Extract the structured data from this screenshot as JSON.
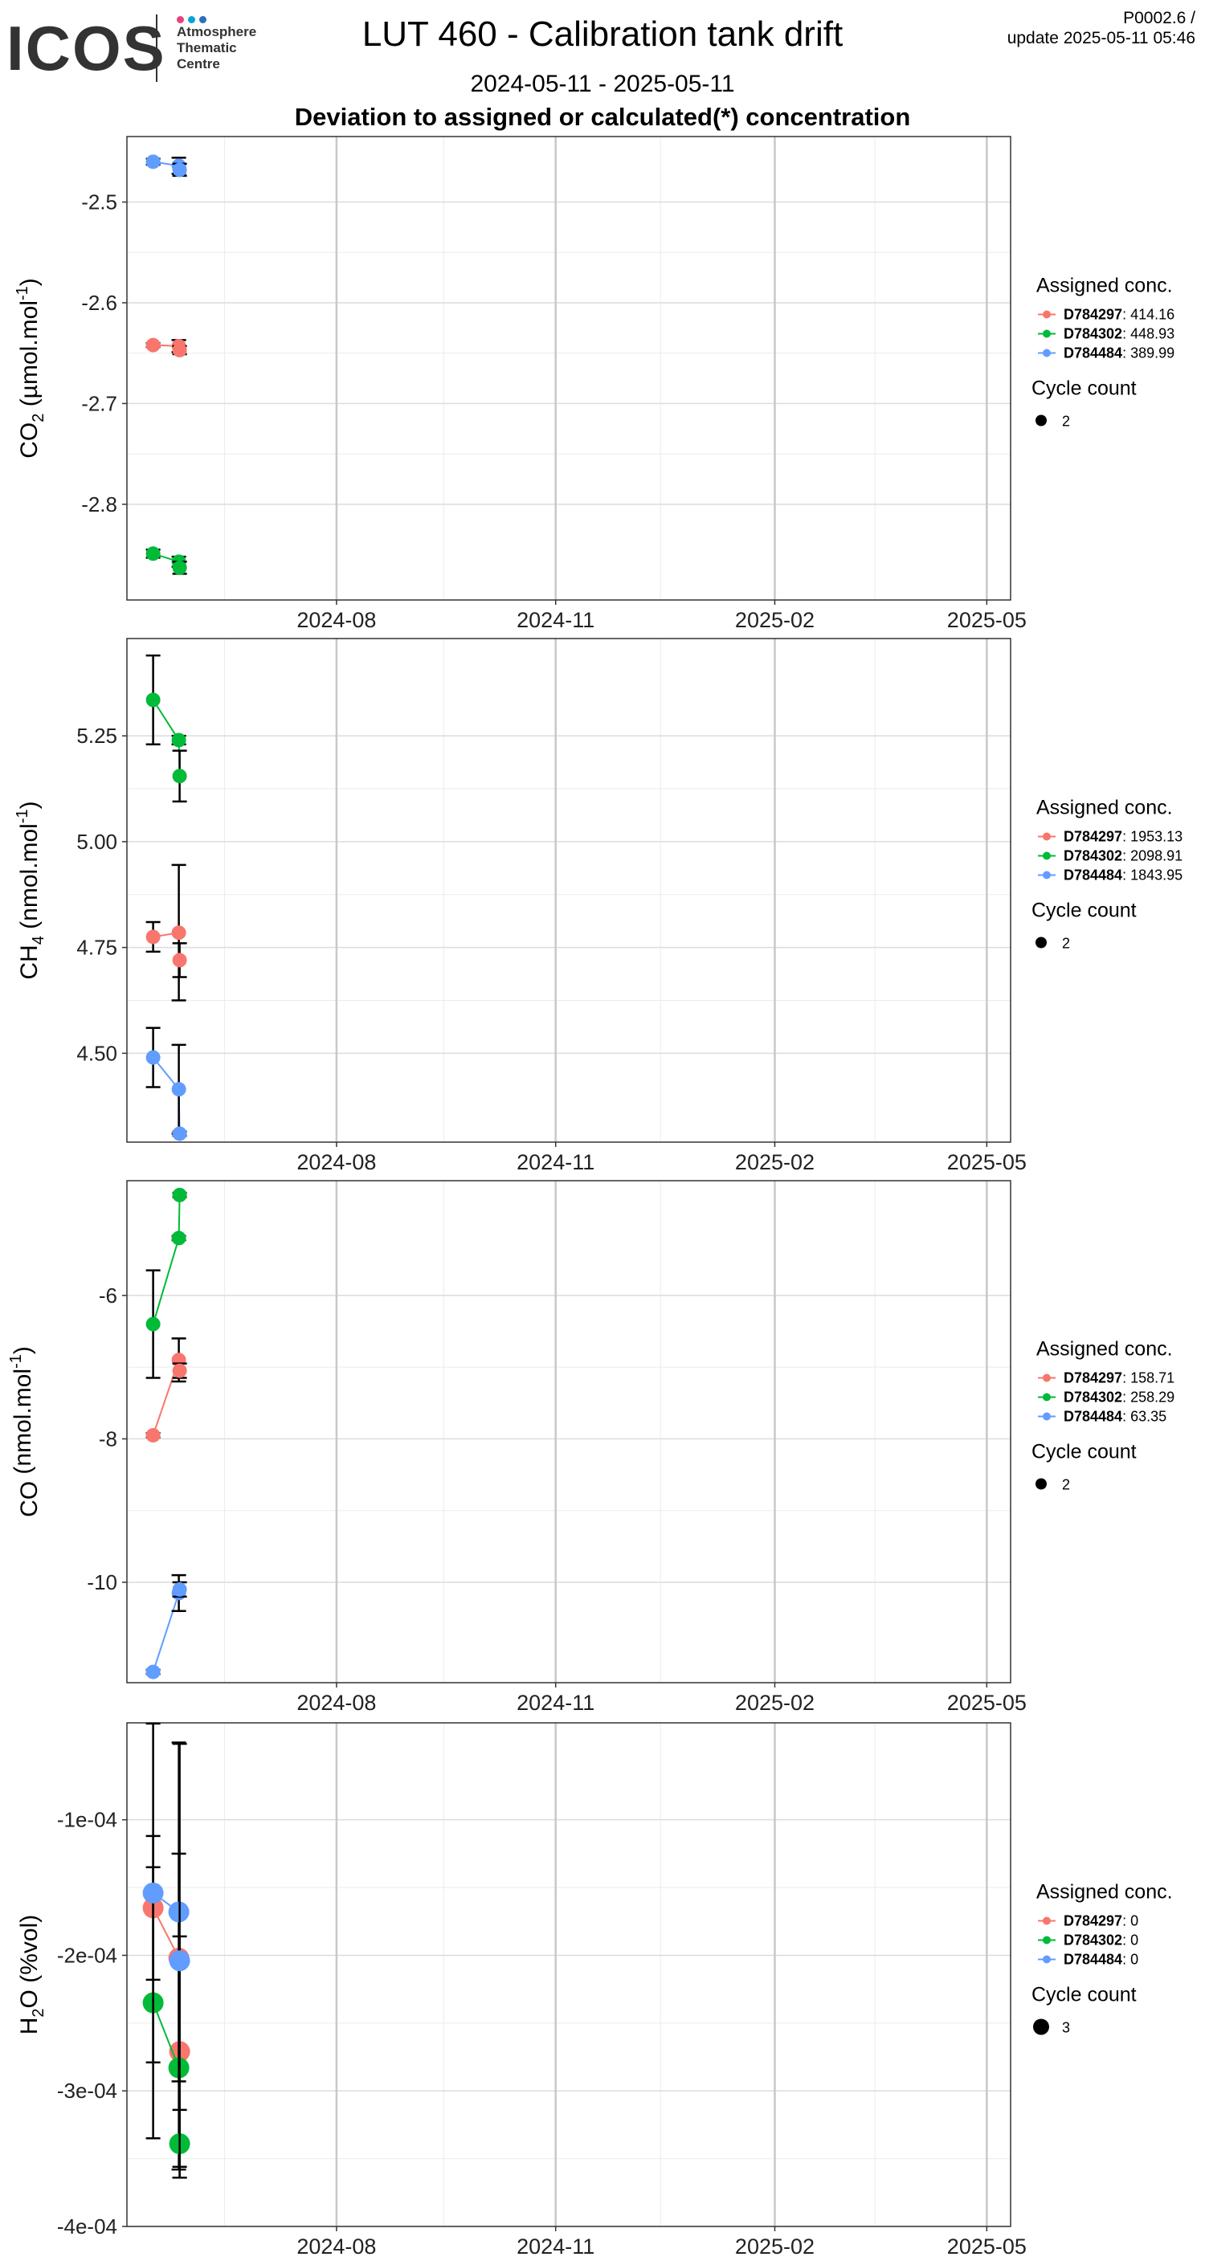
{
  "header": {
    "logo_text": "ICOS",
    "logo_sub": [
      "Atmosphere",
      "Thematic",
      "Centre"
    ],
    "logo_dot_colors": [
      "#e6427a",
      "#00a6d6",
      "#2e6fb8"
    ],
    "title": "LUT 460 - Calibration tank drift",
    "date_range": "2024-05-11 - 2025-05-11",
    "subtitle": "Deviation to assigned or calculated(*) concentration",
    "version_line1": "P0002.6 /",
    "version_line2": "update  2025-05-11 05:46"
  },
  "chart_data": [
    {
      "type": "line",
      "ylabel": "CO2 (µmol.mol-1)",
      "ylabel_main": "CO",
      "ylabel_sub": "2",
      "ylabel_rest": " (µmol.mol",
      "ylabel_sup": "-1",
      "ylabel_end": ")",
      "x_ticks": [
        "2024-08",
        "2024-11",
        "2025-02",
        "2025-05"
      ],
      "x_domain": [
        "2024-05-11",
        "2025-05-11"
      ],
      "ylim": [
        -2.895,
        -2.435
      ],
      "y_ticks": [
        -2.8,
        -2.7,
        -2.6,
        -2.5
      ],
      "y_tick_labels": [
        "-2.8",
        "-2.7",
        "-2.6",
        "-2.5"
      ],
      "legend_title": "Assigned conc.",
      "size_title": "Cycle count",
      "size_label": "2",
      "series": [
        {
          "name": "D784297",
          "value_label": "414.16",
          "color": "#f8766d",
          "points": [
            {
              "x": "2024-05-16",
              "y": -2.642,
              "err": 0.002
            },
            {
              "x": "2024-05-22",
              "y": -2.643,
              "err": 0.006
            },
            {
              "x": "2024-05-22",
              "y": -2.647,
              "err": 0.004
            }
          ]
        },
        {
          "name": "D784302",
          "value_label": "448.93",
          "color": "#00ba38",
          "points": [
            {
              "x": "2024-05-16",
              "y": -2.849,
              "err": 0.004
            },
            {
              "x": "2024-05-22",
              "y": -2.857,
              "err": 0.005
            },
            {
              "x": "2024-05-22",
              "y": -2.863,
              "err": 0.006
            }
          ]
        },
        {
          "name": "D784484",
          "value_label": "389.99",
          "color": "#619cff",
          "points": [
            {
              "x": "2024-05-16",
              "y": -2.46,
              "err": 0.003
            },
            {
              "x": "2024-05-22",
              "y": -2.464,
              "err": 0.008
            },
            {
              "x": "2024-05-22",
              "y": -2.468,
              "err": 0.006
            }
          ]
        }
      ]
    },
    {
      "type": "line",
      "ylabel": "CH4 (nmol.mol-1)",
      "ylabel_main": "CH",
      "ylabel_sub": "4",
      "ylabel_rest": " (nmol.mol",
      "ylabel_sup": "-1",
      "ylabel_end": ")",
      "x_ticks": [
        "2024-08",
        "2024-11",
        "2025-02",
        "2025-05"
      ],
      "x_domain": [
        "2024-05-11",
        "2025-05-11"
      ],
      "ylim": [
        4.29,
        5.48
      ],
      "y_ticks": [
        4.5,
        4.75,
        5.0,
        5.25
      ],
      "y_tick_labels": [
        "4.50",
        "4.75",
        "5.00",
        "5.25"
      ],
      "legend_title": "Assigned conc.",
      "size_title": "Cycle count",
      "size_label": "2",
      "series": [
        {
          "name": "D784297",
          "value_label": "1953.13",
          "color": "#f8766d",
          "points": [
            {
              "x": "2024-05-16",
              "y": 4.775,
              "err": 0.035
            },
            {
              "x": "2024-05-22",
              "y": 4.785,
              "err": 0.16
            },
            {
              "x": "2024-05-22",
              "y": 4.72,
              "err": 0.04
            }
          ]
        },
        {
          "name": "D784302",
          "value_label": "2098.91",
          "color": "#00ba38",
          "points": [
            {
              "x": "2024-05-16",
              "y": 5.335,
              "err": 0.105
            },
            {
              "x": "2024-05-22",
              "y": 5.24,
              "err": 0.01
            },
            {
              "x": "2024-05-22",
              "y": 5.155,
              "err": 0.06
            }
          ]
        },
        {
          "name": "D784484",
          "value_label": "1843.95",
          "color": "#619cff",
          "points": [
            {
              "x": "2024-05-16",
              "y": 4.49,
              "err": 0.07
            },
            {
              "x": "2024-05-22",
              "y": 4.415,
              "err": 0.105
            },
            {
              "x": "2024-05-22",
              "y": 4.31,
              "err": 0.005
            }
          ]
        }
      ]
    },
    {
      "type": "line",
      "ylabel": "CO (nmol.mol-1)",
      "ylabel_main": "CO",
      "ylabel_sub": "",
      "ylabel_rest": " (nmol.mol",
      "ylabel_sup": "-1",
      "ylabel_end": ")",
      "x_ticks": [
        "2024-08",
        "2024-11",
        "2025-02",
        "2025-05"
      ],
      "x_domain": [
        "2024-05-11",
        "2025-05-11"
      ],
      "ylim": [
        -11.4,
        -4.4
      ],
      "y_ticks": [
        -10,
        -8,
        -6
      ],
      "y_tick_labels": [
        "-10",
        "-8",
        "-6"
      ],
      "legend_title": "Assigned conc.",
      "size_title": "Cycle count",
      "size_label": "2",
      "series": [
        {
          "name": "D784297",
          "value_label": "158.71",
          "color": "#f8766d",
          "points": [
            {
              "x": "2024-05-16",
              "y": -7.95,
              "err": 0.03
            },
            {
              "x": "2024-05-22",
              "y": -6.9,
              "err": 0.3
            },
            {
              "x": "2024-05-22",
              "y": -7.05,
              "err": 0.1
            }
          ]
        },
        {
          "name": "D784302",
          "value_label": "258.29",
          "color": "#00ba38",
          "points": [
            {
              "x": "2024-05-16",
              "y": -6.4,
              "err": 0.75
            },
            {
              "x": "2024-05-22",
              "y": -5.2,
              "err": 0.03
            },
            {
              "x": "2024-05-22",
              "y": -4.6,
              "err": 0.03
            }
          ]
        },
        {
          "name": "D784484",
          "value_label": "63.35",
          "color": "#619cff",
          "points": [
            {
              "x": "2024-05-16",
              "y": -11.25,
              "err": 0.03
            },
            {
              "x": "2024-05-22",
              "y": -10.15,
              "err": 0.25
            },
            {
              "x": "2024-05-22",
              "y": -10.1,
              "err": 0.1
            }
          ]
        }
      ]
    },
    {
      "type": "line",
      "ylabel": "H2O (%vol)",
      "ylabel_main": "H",
      "ylabel_sub": "2",
      "ylabel_rest": "O (%vol)",
      "ylabel_sup": "",
      "ylabel_end": "",
      "x_ticks": [
        "2024-08",
        "2024-11",
        "2025-02",
        "2025-05"
      ],
      "x_domain": [
        "2024-05-11",
        "2025-05-11"
      ],
      "ylim": [
        -0.0004,
        -2.85e-05
      ],
      "y_ticks": [
        -0.0004,
        -0.0003,
        -0.0002,
        -0.0001
      ],
      "y_tick_labels": [
        "-4e-04",
        "-3e-04",
        "-2e-04",
        "-1e-04"
      ],
      "legend_title": "Assigned conc.",
      "size_title": "Cycle count",
      "size_label": "3",
      "point_radius": 13,
      "series": [
        {
          "name": "D784297",
          "value_label": "0",
          "color": "#f8766d",
          "points": [
            {
              "x": "2024-05-16",
              "y": -0.000165,
              "err": 5.3e-05
            },
            {
              "x": "2024-05-22",
              "y": -0.000202,
              "err": 7.7e-05
            },
            {
              "x": "2024-05-22",
              "y": -0.000271,
              "err": 8.5e-05
            }
          ]
        },
        {
          "name": "D784302",
          "value_label": "0",
          "color": "#00ba38",
          "points": [
            {
              "x": "2024-05-16",
              "y": -0.000235,
              "err": 0.0001
            },
            {
              "x": "2024-05-22",
              "y": -0.000283,
              "err": 7.5e-05
            },
            {
              "x": "2024-05-22",
              "y": -0.000339,
              "err": 2.5e-05
            }
          ]
        },
        {
          "name": "D784484",
          "value_label": "0",
          "color": "#619cff",
          "points": [
            {
              "x": "2024-05-16",
              "y": -0.000154,
              "err": 0.000125
            },
            {
              "x": "2024-05-22",
              "y": -0.000168,
              "err": 0.000125
            },
            {
              "x": "2024-05-22",
              "y": -0.000204,
              "err": 0.00016
            }
          ]
        }
      ]
    }
  ]
}
